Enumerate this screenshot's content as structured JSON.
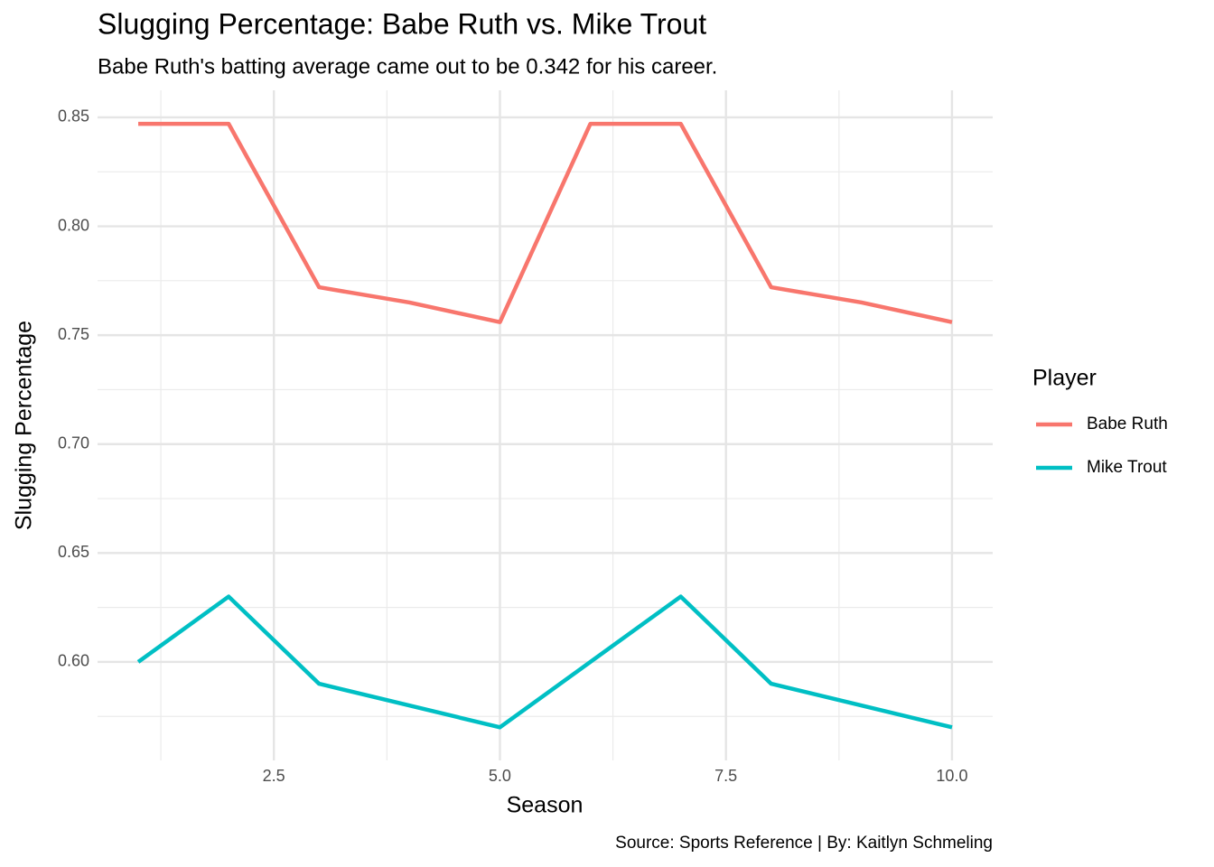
{
  "chart_data": {
    "type": "line",
    "title": "Slugging Percentage: Babe Ruth vs. Mike Trout",
    "subtitle": "Babe Ruth's batting average came out to be 0.342 for his career.",
    "x_label": "Season",
    "y_label": "Slugging Percentage",
    "caption": "Source: Sports Reference | By: Kaitlyn Schmeling",
    "legend_title": "Player",
    "legend_position": "right",
    "grid": true,
    "x": [
      1,
      2,
      3,
      4,
      5,
      6,
      7,
      8,
      9,
      10
    ],
    "series": [
      {
        "name": "Babe Ruth",
        "color": "#F8766D",
        "values": [
          0.847,
          0.847,
          0.772,
          0.765,
          0.756,
          0.847,
          0.847,
          0.772,
          0.765,
          0.756
        ]
      },
      {
        "name": "Mike Trout",
        "color": "#00BFC4",
        "values": [
          0.6,
          0.63,
          0.59,
          0.58,
          0.57,
          0.6,
          0.63,
          0.59,
          0.58,
          0.57
        ]
      }
    ],
    "xlim": [
      0.55,
      10.45
    ],
    "xticks": [
      2.5,
      {
        "value": 5,
        "label": "5.0"
      },
      7.5,
      {
        "value": 10,
        "label": "10.0"
      }
    ],
    "ylim": [
      0.5548,
      0.8624
    ],
    "yticks": [
      {
        "value": 0.6,
        "label": "0.60"
      },
      0.65,
      {
        "value": 0.7,
        "label": "0.70"
      },
      0.75,
      {
        "value": 0.8,
        "label": "0.80"
      },
      0.85
    ]
  }
}
